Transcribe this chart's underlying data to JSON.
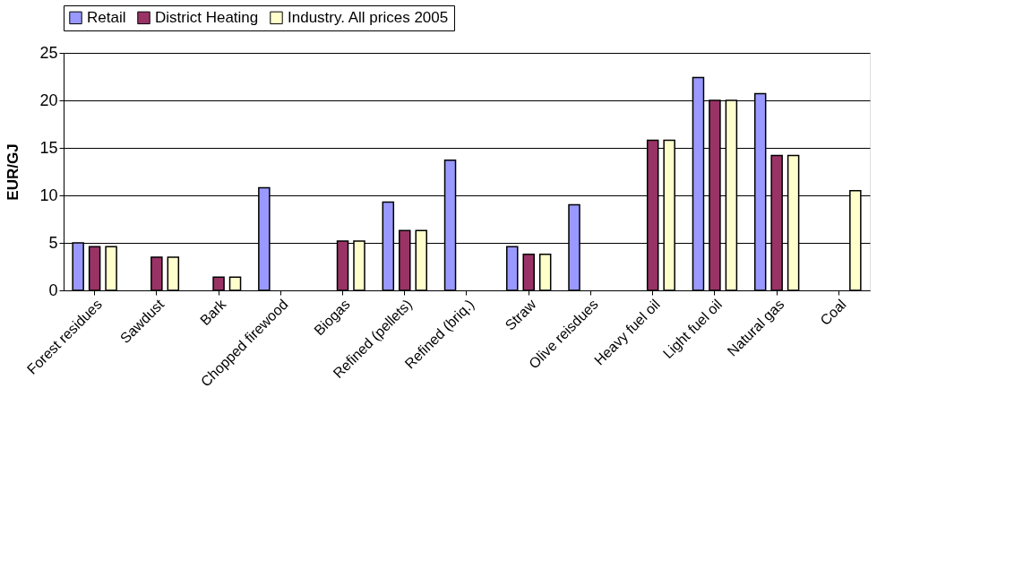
{
  "chart_data": {
    "type": "bar",
    "ylabel": "EUR/GJ",
    "categories": [
      "Forest residues",
      "Sawdust",
      "Bark",
      "Chopped firewood",
      "Biogas",
      "Refined (pellets)",
      "Refined (briq.)",
      "Straw",
      "Olive reisdues",
      "Heavy fuel oil",
      "Light fuel oil",
      "Natural gas",
      "Coal"
    ],
    "series": [
      {
        "name": "Retail",
        "color": "#9999ff",
        "values": [
          5.0,
          null,
          null,
          10.8,
          null,
          9.3,
          13.7,
          4.6,
          9.0,
          null,
          22.4,
          20.7,
          null
        ]
      },
      {
        "name": "District Heating",
        "color": "#993366",
        "values": [
          4.6,
          3.5,
          1.4,
          null,
          5.2,
          6.3,
          null,
          3.8,
          null,
          15.8,
          20.0,
          14.2,
          null
        ]
      },
      {
        "name": "Industry. All prices 2005",
        "color": "#ffffcc",
        "values": [
          4.6,
          3.5,
          1.4,
          null,
          5.2,
          6.3,
          null,
          3.8,
          null,
          15.8,
          20.0,
          14.2,
          10.5
        ]
      }
    ],
    "ylim": [
      0,
      25
    ],
    "yticks": [
      0,
      5,
      10,
      15,
      20,
      25
    ],
    "grid": "y",
    "legend": "top"
  }
}
